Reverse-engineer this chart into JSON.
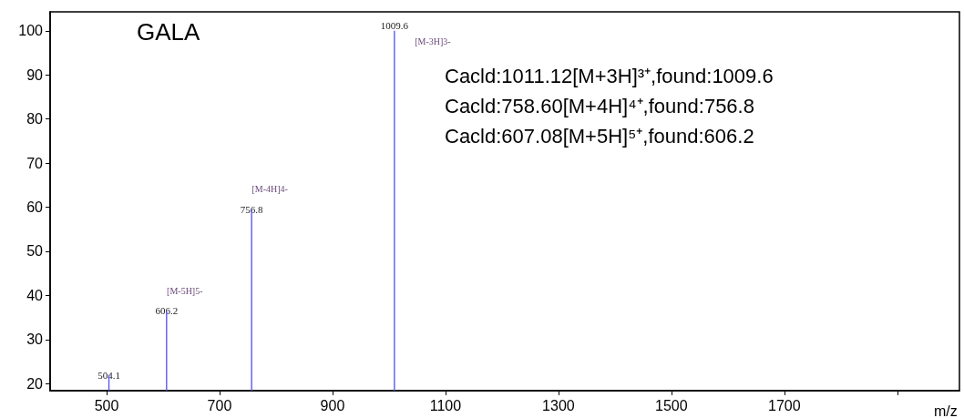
{
  "chart_data": {
    "type": "bar",
    "title": "GALA",
    "xlabel": "m/z",
    "x": [
      504.1,
      606.2,
      756.8,
      1009.6
    ],
    "values": [
      22,
      36.5,
      59.5,
      100
    ],
    "color": "#5a5af2",
    "xlim": [
      400,
      2010
    ],
    "xticks": [
      500,
      700,
      900,
      1100,
      1300,
      1500,
      1700,
      {
        "value": 1900,
        "label": null
      }
    ],
    "ylim": [
      18.4,
      104.3
    ],
    "yticks": [
      20,
      30,
      40,
      50,
      60,
      70,
      80,
      90,
      100
    ],
    "grid": false,
    "annotations": [
      "Cacld:1011.12[M+3H]³⁺,found:1009.6",
      "Cacld:758.60[M+4H]⁴⁺,found:756.8",
      "Cacld:607.08[M+5H]⁵⁺,found:606.2",
      {
        "text": "504.1",
        "x": 504.1,
        "y": 22
      },
      {
        "text": "606.2",
        "x": 606.2,
        "y": 36.5
      },
      {
        "text": "756.8",
        "x": 756.8,
        "y": 59.5
      },
      {
        "text": "1009.6",
        "x": 1009.6,
        "y": 100
      },
      {
        "text": "[M-5H]5-",
        "x": 606.2,
        "y": 36.5
      },
      {
        "text": "[M-4H]4-",
        "x": 756.8,
        "y": 59.5
      },
      {
        "text": "[M-3H]3-",
        "x": 1009.6,
        "y": 100
      }
    ]
  }
}
